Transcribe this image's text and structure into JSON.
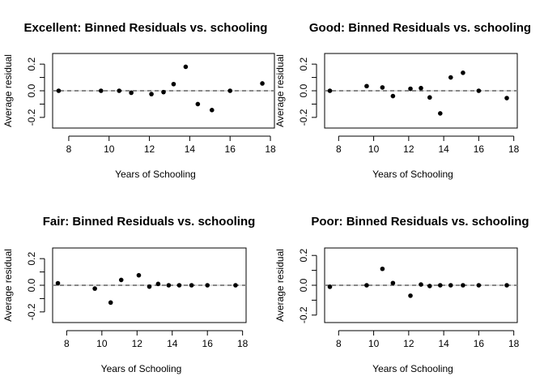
{
  "chart_data": [
    {
      "type": "scatter",
      "title": "Excellent: Binned Residuals vs. schooling",
      "xlabel": "Years of Schooling",
      "ylabel": "Average residual",
      "xlim": [
        7.2,
        18.2
      ],
      "ylim": [
        -0.28,
        0.28
      ],
      "xticks": [
        8,
        10,
        12,
        14,
        16,
        18
      ],
      "yticks": [
        -0.2,
        0.0,
        0.2
      ],
      "reference_line": 0,
      "x": [
        7.5,
        9.6,
        10.5,
        11.1,
        12.1,
        12.7,
        13.2,
        13.8,
        14.4,
        15.1,
        16.0,
        17.6
      ],
      "y": [
        0.0,
        0.0,
        0.0,
        -0.015,
        -0.025,
        -0.01,
        0.05,
        0.18,
        -0.1,
        -0.145,
        0.0,
        0.055
      ]
    },
    {
      "type": "scatter",
      "title": "Good: Binned Residuals vs. schooling",
      "xlabel": "Years of Schooling",
      "ylabel": "Average residual",
      "xlim": [
        7.2,
        18.2
      ],
      "ylim": [
        -0.28,
        0.28
      ],
      "xticks": [
        8,
        10,
        12,
        14,
        16,
        18
      ],
      "yticks": [
        -0.2,
        0.0,
        0.2
      ],
      "reference_line": 0,
      "x": [
        7.5,
        9.6,
        10.5,
        11.1,
        12.1,
        12.7,
        13.2,
        13.8,
        14.4,
        15.1,
        16.0,
        17.6
      ],
      "y": [
        0.0,
        0.035,
        0.025,
        -0.04,
        0.015,
        0.02,
        -0.05,
        -0.17,
        0.1,
        0.135,
        0.0,
        -0.055
      ]
    },
    {
      "type": "scatter",
      "title": "Fair: Binned Residuals vs. schooling",
      "xlabel": "Years of Schooling",
      "ylabel": "Average residual",
      "xlim": [
        7.2,
        18.2
      ],
      "ylim": [
        -0.28,
        0.28
      ],
      "xticks": [
        8,
        10,
        12,
        14,
        16,
        18
      ],
      "yticks": [
        -0.2,
        0.0,
        0.2
      ],
      "reference_line": 0,
      "x": [
        7.5,
        9.6,
        10.5,
        11.1,
        12.1,
        12.7,
        13.2,
        13.8,
        14.4,
        15.1,
        16.0,
        17.6
      ],
      "y": [
        0.015,
        -0.025,
        -0.13,
        0.04,
        0.075,
        -0.01,
        0.01,
        0.0,
        0.0,
        0.0,
        0.0,
        0.0
      ]
    },
    {
      "type": "scatter",
      "title": "Poor: Binned Residuals vs. schooling",
      "xlabel": "Years of Schooling",
      "ylabel": "Average residual",
      "xlim": [
        7.2,
        18.2
      ],
      "ylim": [
        -0.25,
        0.25
      ],
      "xticks": [
        8,
        10,
        12,
        14,
        16,
        18
      ],
      "yticks": [
        -0.2,
        0.0,
        0.2
      ],
      "reference_line": 0,
      "x": [
        7.5,
        9.6,
        10.5,
        11.1,
        12.1,
        12.7,
        13.2,
        13.8,
        14.4,
        15.1,
        16.0,
        17.6
      ],
      "y": [
        -0.01,
        0.0,
        0.11,
        0.015,
        -0.07,
        0.005,
        -0.005,
        0.0,
        0.0,
        0.0,
        0.0,
        0.0
      ]
    }
  ]
}
